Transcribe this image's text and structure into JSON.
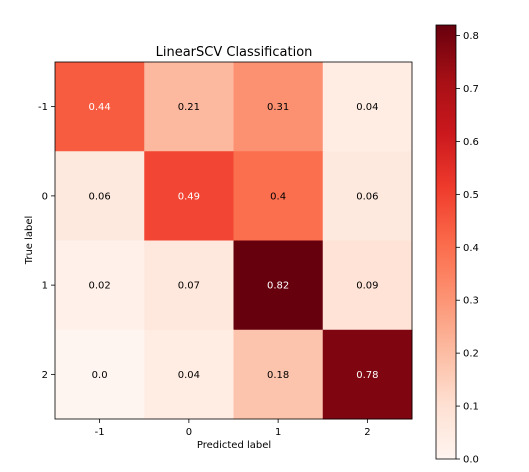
{
  "chart_data": {
    "type": "heatmap",
    "title": "LinearSCV Classification",
    "xlabel": "Predicted label",
    "ylabel": "True label",
    "x_categories": [
      "-1",
      "0",
      "1",
      "2"
    ],
    "y_categories": [
      "-1",
      "0",
      "1",
      "2"
    ],
    "values": [
      [
        0.44,
        0.21,
        0.31,
        0.04
      ],
      [
        0.06,
        0.49,
        0.4,
        0.06
      ],
      [
        0.02,
        0.07,
        0.82,
        0.09
      ],
      [
        0.0,
        0.04,
        0.18,
        0.78
      ]
    ],
    "value_labels": [
      [
        "0.44",
        "0.21",
        "0.31",
        "0.04"
      ],
      [
        "0.06",
        "0.49",
        "0.4",
        "0.06"
      ],
      [
        "0.02",
        "0.07",
        "0.82",
        "0.09"
      ],
      [
        "0.0",
        "0.04",
        "0.18",
        "0.78"
      ]
    ],
    "colormap": "Reds",
    "colorbar": {
      "range": [
        0.0,
        0.82
      ],
      "ticks": [
        "0.0",
        "0.1",
        "0.2",
        "0.3",
        "0.4",
        "0.5",
        "0.6",
        "0.7",
        "0.8"
      ]
    },
    "label_colors": {
      "light": "#ffffff",
      "dark": "#000000"
    }
  }
}
